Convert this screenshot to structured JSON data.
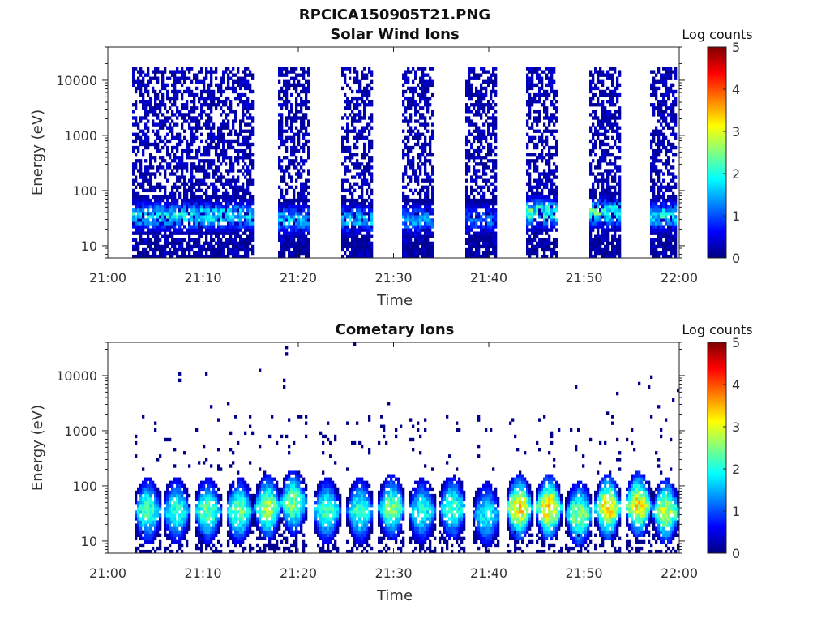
{
  "figure": {
    "title": "RPCICA150905T21.PNG"
  },
  "colorbar": {
    "label": "Log counts",
    "range": [
      0,
      5
    ],
    "ticks": [
      "0",
      "1",
      "2",
      "3",
      "4",
      "5"
    ],
    "colormap": "jet",
    "colors": [
      "#00007f",
      "#0000ff",
      "#0080ff",
      "#00ffff",
      "#80ff80",
      "#ffff00",
      "#ff8000",
      "#ff0000",
      "#7f0000"
    ]
  },
  "chart_data": [
    {
      "type": "heatmap",
      "title": "Solar Wind Ions",
      "xlabel": "Time",
      "ylabel": "Energy (eV)",
      "xlim": [
        "21:00",
        "22:00"
      ],
      "x_ticks": [
        "21:00",
        "21:10",
        "21:20",
        "21:30",
        "21:40",
        "21:50",
        "22:00"
      ],
      "y_scale": "log",
      "ylim": [
        6,
        40000
      ],
      "y_ticks": [
        "10",
        "100",
        "1000",
        "10000"
      ],
      "sweeps": [
        {
          "start": "21:02.5",
          "end": "21:15.2",
          "peak_energy": 35,
          "peak_log_counts": 2.3
        },
        {
          "start": "21:18.0",
          "end": "21:21.3",
          "peak_energy": 30,
          "peak_log_counts": 2.0
        },
        {
          "start": "21:24.5",
          "end": "21:27.8",
          "peak_energy": 30,
          "peak_log_counts": 2.0
        },
        {
          "start": "21:31.0",
          "end": "21:34.3",
          "peak_energy": 30,
          "peak_log_counts": 1.8
        },
        {
          "start": "21:37.5",
          "end": "21:40.8",
          "peak_energy": 30,
          "peak_log_counts": 1.5
        },
        {
          "start": "21:44.0",
          "end": "21:47.2",
          "peak_energy": 40,
          "peak_log_counts": 2.8
        },
        {
          "start": "21:50.5",
          "end": "21:53.8",
          "peak_energy": 40,
          "peak_log_counts": 2.7
        },
        {
          "start": "21:57.0",
          "end": "21:59.8",
          "peak_energy": 35,
          "peak_log_counts": 2.3
        }
      ]
    },
    {
      "type": "heatmap",
      "title": "Cometary Ions",
      "xlabel": "Time",
      "ylabel": "Energy (eV)",
      "xlim": [
        "21:00",
        "22:00"
      ],
      "x_ticks": [
        "21:00",
        "21:10",
        "21:20",
        "21:30",
        "21:40",
        "21:50",
        "22:00"
      ],
      "y_scale": "log",
      "ylim": [
        6,
        40000
      ],
      "y_ticks": [
        "10",
        "100",
        "1000",
        "10000"
      ],
      "sweeps": [
        {
          "center": "21:04.2",
          "peak_energy": 35,
          "peak_log_counts": 2.6
        },
        {
          "center": "21:07.2",
          "peak_energy": 35,
          "peak_log_counts": 2.5
        },
        {
          "center": "21:10.5",
          "peak_energy": 35,
          "peak_log_counts": 2.7
        },
        {
          "center": "21:13.8",
          "peak_energy": 35,
          "peak_log_counts": 2.8
        },
        {
          "center": "21:16.8",
          "peak_energy": 40,
          "peak_log_counts": 3.1
        },
        {
          "center": "21:19.5",
          "peak_energy": 50,
          "peak_log_counts": 2.9
        },
        {
          "center": "21:23.0",
          "peak_energy": 35,
          "peak_log_counts": 2.6
        },
        {
          "center": "21:26.5",
          "peak_energy": 35,
          "peak_log_counts": 2.5
        },
        {
          "center": "21:29.8",
          "peak_energy": 40,
          "peak_log_counts": 2.9
        },
        {
          "center": "21:33.0",
          "peak_energy": 35,
          "peak_log_counts": 2.3
        },
        {
          "center": "21:36.2",
          "peak_energy": 40,
          "peak_log_counts": 2.6
        },
        {
          "center": "21:39.8",
          "peak_energy": 30,
          "peak_log_counts": 2.2
        },
        {
          "center": "21:43.2",
          "peak_energy": 40,
          "peak_log_counts": 3.8
        },
        {
          "center": "21:46.3",
          "peak_energy": 40,
          "peak_log_counts": 3.9
        },
        {
          "center": "21:49.5",
          "peak_energy": 30,
          "peak_log_counts": 3.0
        },
        {
          "center": "21:52.5",
          "peak_energy": 40,
          "peak_log_counts": 3.8
        },
        {
          "center": "21:55.7",
          "peak_energy": 45,
          "peak_log_counts": 3.7
        },
        {
          "center": "21:58.6",
          "peak_energy": 35,
          "peak_log_counts": 3.3
        }
      ]
    }
  ]
}
